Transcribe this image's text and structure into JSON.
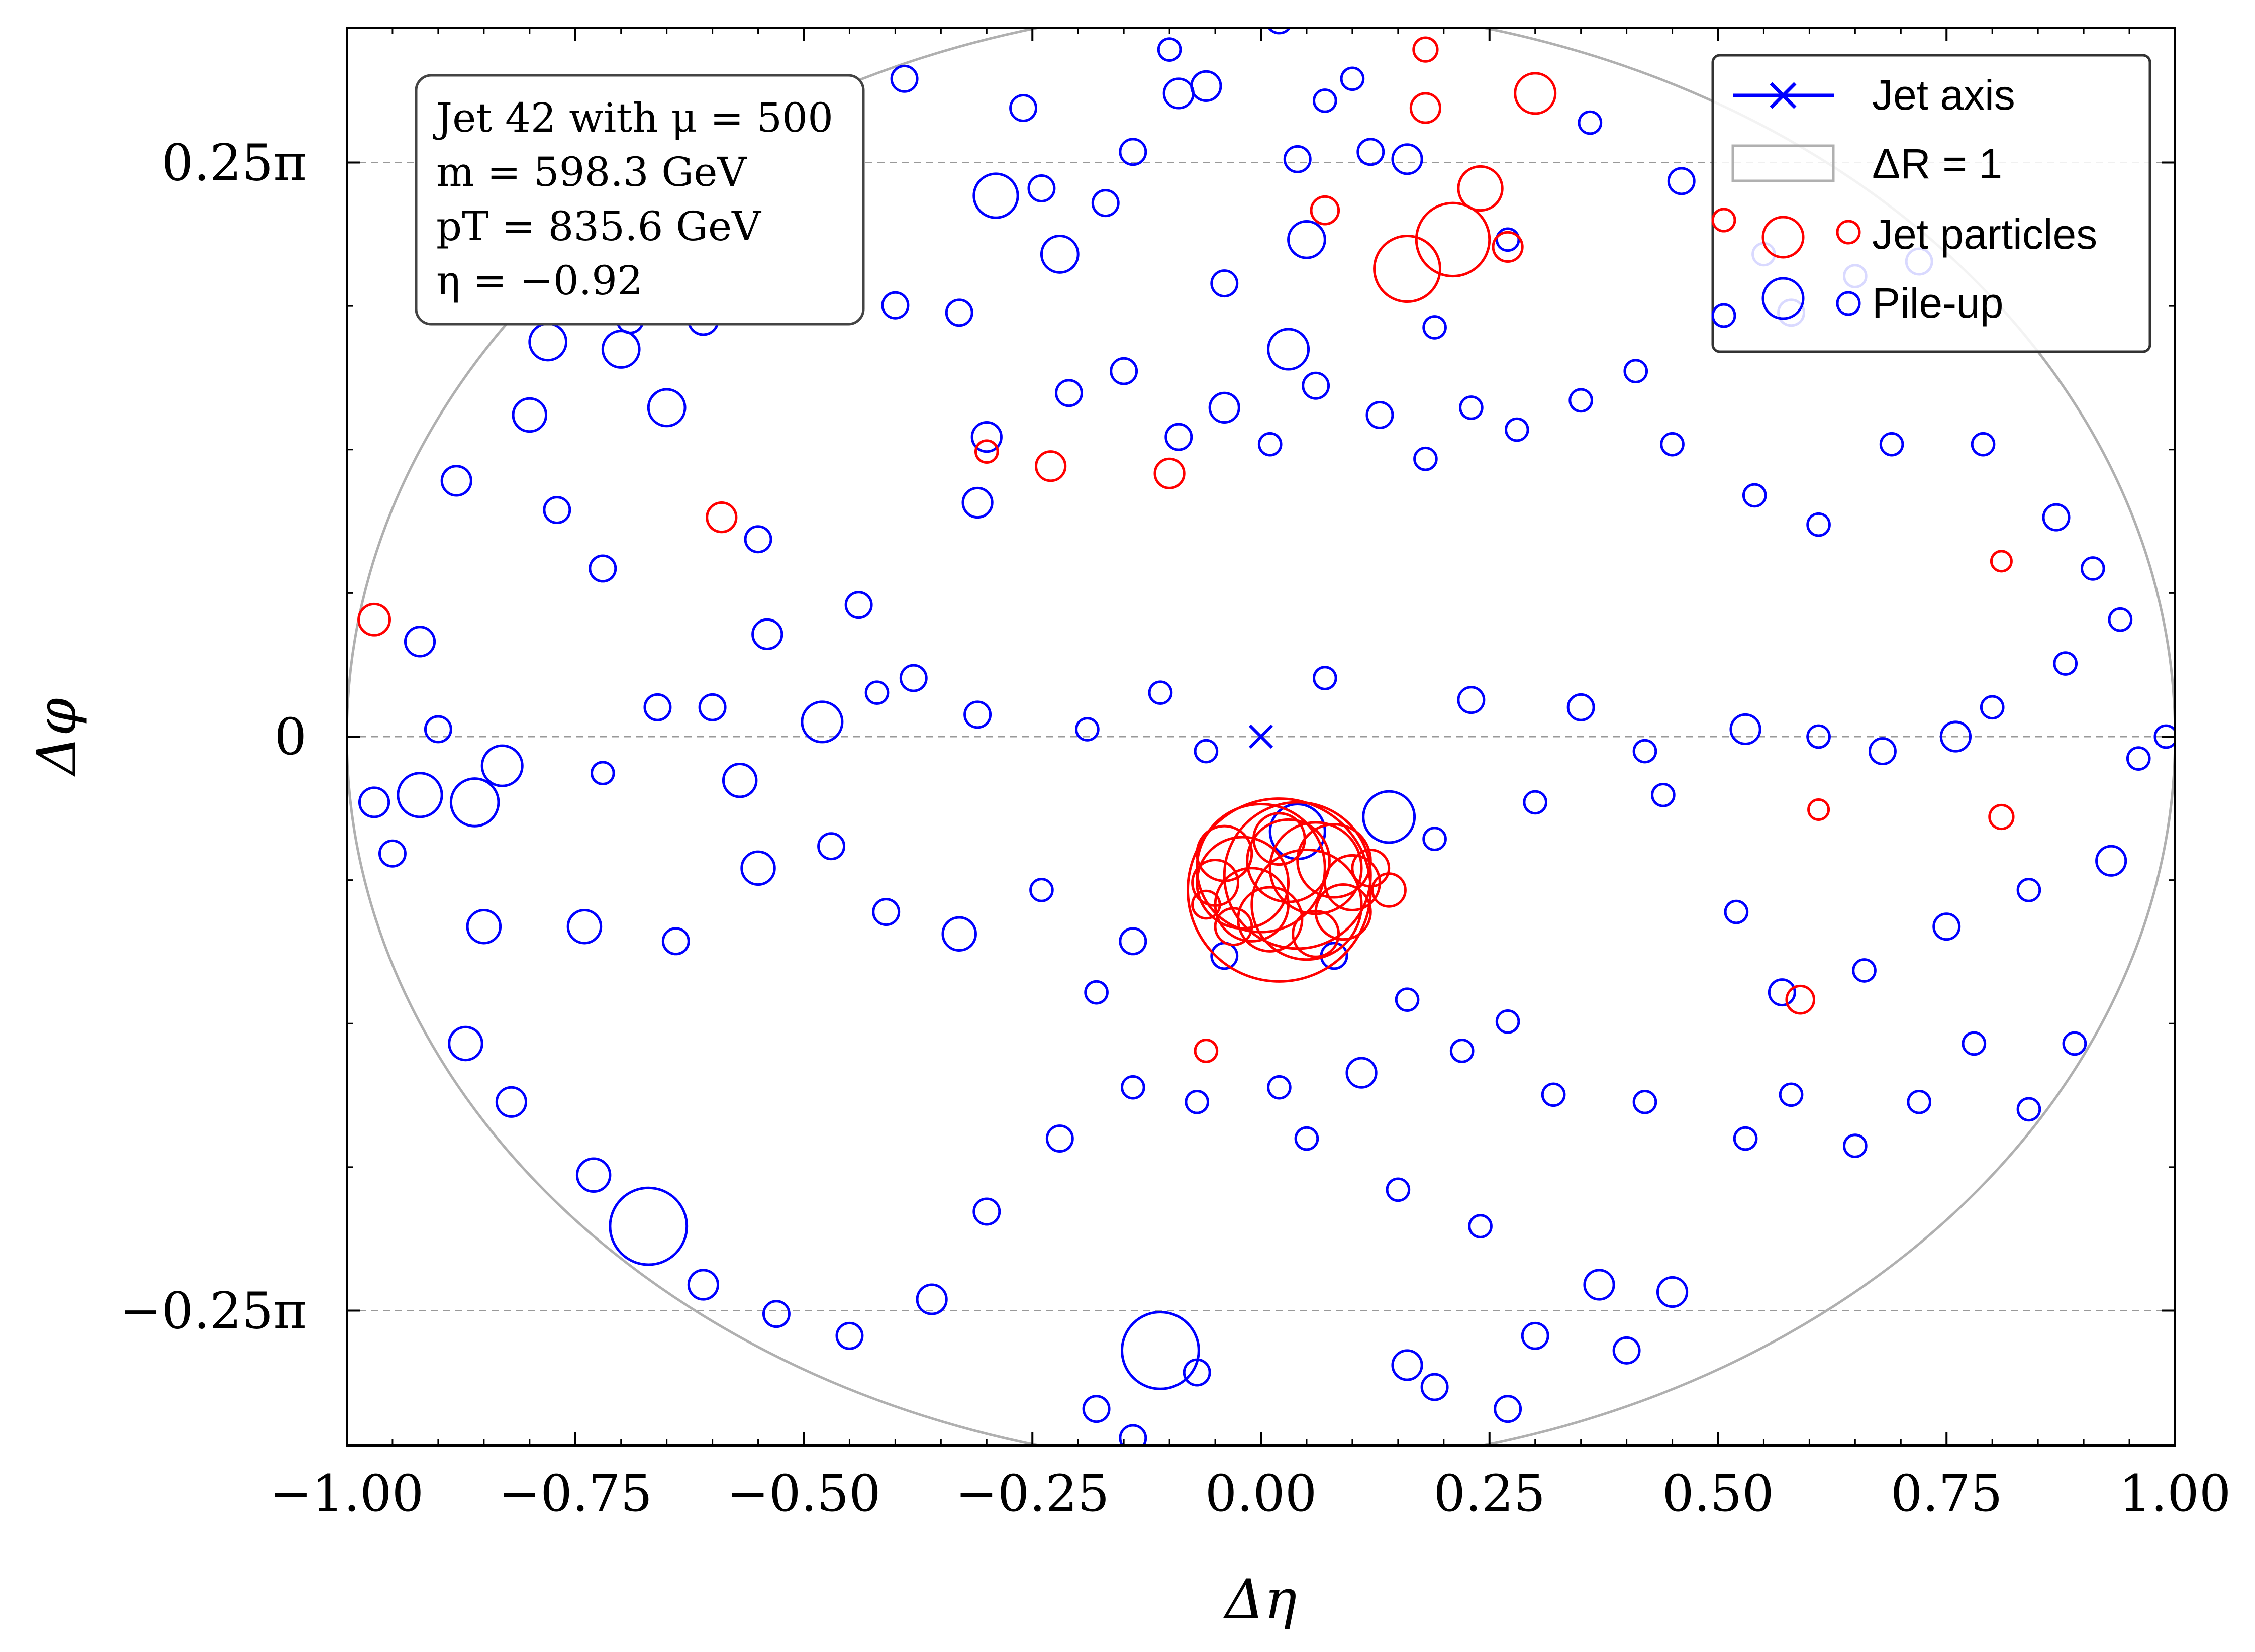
{
  "chart_data": {
    "type": "scatter",
    "xlabel": "Δη",
    "ylabel": "Δφ",
    "xlim": [
      -1.0,
      1.0
    ],
    "ylim": [
      -0.97,
      0.97
    ],
    "x_ticks": [
      -1.0,
      -0.75,
      -0.5,
      -0.25,
      0.0,
      0.25,
      0.5,
      0.75,
      1.0
    ],
    "x_tick_labels": [
      "−1.00",
      "−0.75",
      "−0.50",
      "−0.25",
      "0.00",
      "0.25",
      "0.50",
      "0.75",
      "1.00"
    ],
    "y_ticks": [
      0.7854,
      0.0,
      -0.7854
    ],
    "y_tick_labels": [
      "0.25π",
      "0",
      "−0.25π"
    ],
    "reference_lines_y": [
      0.7854,
      0.0,
      -0.7854
    ],
    "info_box": {
      "line1": "Jet 42 with μ = 500",
      "line2": "m = 598.3 GeV",
      "line3": "pT = 835.6 GeV",
      "line4": "η = −0.92"
    },
    "legend": {
      "placement": "top-right",
      "entries": [
        "Jet axis",
        "ΔR = 1",
        "Jet particles",
        "Pile-up"
      ]
    },
    "colors": {
      "jet_axis": "#0000ff",
      "jet_particles": "#ff0000",
      "pile_up": "#0000ff",
      "delta_r_circle": "#b0b0b0",
      "reference_lines": "#999999"
    },
    "series": [
      {
        "name": "Jet axis",
        "marker": "x",
        "x": [
          0.0
        ],
        "y": [
          0.0
        ]
      },
      {
        "name": "ΔR = 1",
        "shape": "circle",
        "center": [
          0.0,
          0.0
        ],
        "radius": 1.0
      },
      {
        "name": "Jet particles",
        "marker": "circle",
        "points": [
          [
            0.02,
            -0.21,
            0.1
          ],
          [
            0.04,
            -0.19,
            0.08
          ],
          [
            0.0,
            -0.18,
            0.07
          ],
          [
            0.05,
            -0.23,
            0.06
          ],
          [
            -0.02,
            -0.2,
            0.05
          ],
          [
            0.06,
            -0.18,
            0.05
          ],
          [
            0.03,
            -0.17,
            0.045
          ],
          [
            -0.01,
            -0.23,
            0.04
          ],
          [
            0.08,
            -0.17,
            0.04
          ],
          [
            0.01,
            -0.25,
            0.035
          ],
          [
            0.1,
            -0.2,
            0.03
          ],
          [
            -0.04,
            -0.16,
            0.03
          ],
          [
            0.09,
            -0.24,
            0.03
          ],
          [
            0.02,
            -0.14,
            0.028
          ],
          [
            -0.05,
            -0.2,
            0.025
          ],
          [
            0.06,
            -0.27,
            0.025
          ],
          [
            0.12,
            -0.18,
            0.02
          ],
          [
            -0.03,
            -0.26,
            0.02
          ],
          [
            0.14,
            -0.21,
            0.018
          ],
          [
            -0.06,
            -0.23,
            0.015
          ],
          [
            0.21,
            0.68,
            0.04
          ],
          [
            0.16,
            0.64,
            0.036
          ],
          [
            0.24,
            0.75,
            0.024
          ],
          [
            0.3,
            0.88,
            0.022
          ],
          [
            0.27,
            0.67,
            0.016
          ],
          [
            0.18,
            0.86,
            0.016
          ],
          [
            0.18,
            0.94,
            0.013
          ],
          [
            0.07,
            0.72,
            0.015
          ],
          [
            -0.97,
            0.16,
            0.017
          ],
          [
            -0.59,
            0.3,
            0.016
          ],
          [
            -0.23,
            0.37,
            0.016
          ],
          [
            -0.1,
            0.36,
            0.016
          ],
          [
            -0.3,
            0.39,
            0.012
          ],
          [
            0.81,
            0.24,
            0.011
          ],
          [
            0.61,
            -0.1,
            0.011
          ],
          [
            0.81,
            -0.11,
            0.013
          ],
          [
            0.59,
            -0.36,
            0.015
          ],
          [
            -0.06,
            -0.43,
            0.012
          ]
        ]
      },
      {
        "name": "Pile-up",
        "marker": "circle",
        "points": [
          [
            -0.67,
            -0.67,
            0.042
          ],
          [
            -0.11,
            -0.84,
            0.042
          ],
          [
            0.04,
            -0.13,
            0.03
          ],
          [
            0.14,
            -0.11,
            0.028
          ],
          [
            -0.48,
            0.78,
            0.024
          ],
          [
            -0.53,
            0.73,
            0.02
          ],
          [
            0.03,
            0.53,
            0.022
          ],
          [
            -0.29,
            0.74,
            0.024
          ],
          [
            -0.22,
            0.66,
            0.02
          ],
          [
            0.05,
            0.68,
            0.02
          ],
          [
            -0.3,
            0.41,
            0.016
          ],
          [
            -0.92,
            -0.08,
            0.024
          ],
          [
            -0.86,
            -0.09,
            0.026
          ],
          [
            -0.83,
            -0.04,
            0.022
          ],
          [
            -0.78,
            0.54,
            0.02
          ],
          [
            -0.7,
            0.53,
            0.02
          ],
          [
            -0.65,
            0.45,
            0.02
          ],
          [
            -0.61,
            0.57,
            0.016
          ],
          [
            -0.88,
            0.35,
            0.016
          ],
          [
            -0.77,
            0.31,
            0.014
          ],
          [
            -0.72,
            0.23,
            0.014
          ],
          [
            -0.55,
            0.27,
            0.014
          ],
          [
            -0.54,
            0.14,
            0.016
          ],
          [
            -0.48,
            0.02,
            0.022
          ],
          [
            -0.44,
            0.18,
            0.014
          ],
          [
            -0.38,
            0.08,
            0.014
          ],
          [
            -0.31,
            0.32,
            0.016
          ],
          [
            -0.21,
            0.47,
            0.014
          ],
          [
            -0.15,
            0.5,
            0.014
          ],
          [
            -0.09,
            0.41,
            0.014
          ],
          [
            -0.04,
            0.45,
            0.016
          ],
          [
            0.01,
            0.4,
            0.012
          ],
          [
            0.06,
            0.48,
            0.014
          ],
          [
            0.13,
            0.44,
            0.014
          ],
          [
            0.18,
            0.38,
            0.012
          ],
          [
            0.23,
            0.45,
            0.012
          ],
          [
            0.28,
            0.42,
            0.012
          ],
          [
            0.35,
            0.46,
            0.012
          ],
          [
            0.41,
            0.5,
            0.012
          ],
          [
            0.45,
            0.4,
            0.012
          ],
          [
            0.54,
            0.33,
            0.012
          ],
          [
            0.61,
            0.29,
            0.012
          ],
          [
            0.69,
            0.4,
            0.012
          ],
          [
            0.79,
            0.4,
            0.012
          ],
          [
            0.87,
            0.3,
            0.014
          ],
          [
            0.91,
            0.23,
            0.012
          ],
          [
            0.94,
            0.16,
            0.012
          ],
          [
            0.88,
            0.1,
            0.012
          ],
          [
            0.8,
            0.04,
            0.012
          ],
          [
            0.76,
            0.0,
            0.016
          ],
          [
            0.68,
            -0.02,
            0.014
          ],
          [
            0.61,
            0.0,
            0.012
          ],
          [
            0.53,
            0.01,
            0.016
          ],
          [
            0.42,
            -0.02,
            0.012
          ],
          [
            0.35,
            0.04,
            0.014
          ],
          [
            0.23,
            0.05,
            0.014
          ],
          [
            0.07,
            0.08,
            0.012
          ],
          [
            -0.06,
            -0.02,
            0.012
          ],
          [
            -0.11,
            0.06,
            0.012
          ],
          [
            -0.19,
            0.01,
            0.012
          ],
          [
            -0.31,
            0.03,
            0.014
          ],
          [
            -0.42,
            0.06,
            0.012
          ],
          [
            -0.57,
            -0.06,
            0.018
          ],
          [
            -0.6,
            0.04,
            0.014
          ],
          [
            -0.66,
            0.04,
            0.014
          ],
          [
            -0.72,
            -0.05,
            0.012
          ],
          [
            -0.9,
            0.01,
            0.014
          ],
          [
            -0.97,
            -0.09,
            0.016
          ],
          [
            -0.85,
            -0.26,
            0.018
          ],
          [
            -0.74,
            -0.26,
            0.018
          ],
          [
            -0.64,
            -0.28,
            0.014
          ],
          [
            -0.55,
            -0.18,
            0.018
          ],
          [
            -0.47,
            -0.15,
            0.014
          ],
          [
            -0.41,
            -0.24,
            0.014
          ],
          [
            -0.33,
            -0.27,
            0.018
          ],
          [
            -0.24,
            -0.21,
            0.012
          ],
          [
            -0.18,
            -0.35,
            0.012
          ],
          [
            -0.14,
            -0.48,
            0.012
          ],
          [
            -0.07,
            -0.5,
            0.012
          ],
          [
            0.02,
            -0.48,
            0.012
          ],
          [
            0.11,
            -0.46,
            0.016
          ],
          [
            0.16,
            -0.36,
            0.012
          ],
          [
            0.22,
            -0.43,
            0.012
          ],
          [
            0.27,
            -0.39,
            0.012
          ],
          [
            0.32,
            -0.49,
            0.012
          ],
          [
            0.42,
            -0.5,
            0.012
          ],
          [
            0.53,
            -0.55,
            0.012
          ],
          [
            0.58,
            -0.49,
            0.012
          ],
          [
            0.65,
            -0.56,
            0.012
          ],
          [
            0.72,
            -0.5,
            0.012
          ],
          [
            0.78,
            -0.42,
            0.012
          ],
          [
            0.84,
            -0.51,
            0.012
          ],
          [
            0.89,
            -0.42,
            0.012
          ],
          [
            0.93,
            -0.17,
            0.016
          ],
          [
            0.96,
            -0.03,
            0.012
          ],
          [
            0.99,
            0.0,
            0.012
          ],
          [
            0.84,
            -0.21,
            0.012
          ],
          [
            0.75,
            -0.26,
            0.014
          ],
          [
            0.66,
            -0.32,
            0.012
          ],
          [
            0.57,
            -0.35,
            0.014
          ],
          [
            0.52,
            -0.24,
            0.012
          ],
          [
            0.44,
            -0.08,
            0.012
          ],
          [
            0.3,
            -0.09,
            0.012
          ],
          [
            0.19,
            -0.14,
            0.012
          ],
          [
            0.08,
            -0.3,
            0.014
          ],
          [
            -0.04,
            -0.3,
            0.014
          ],
          [
            -0.14,
            -0.28,
            0.014
          ],
          [
            -0.22,
            -0.55,
            0.014
          ],
          [
            -0.3,
            -0.65,
            0.014
          ],
          [
            -0.36,
            -0.77,
            0.016
          ],
          [
            -0.45,
            -0.82,
            0.014
          ],
          [
            -0.53,
            -0.79,
            0.014
          ],
          [
            -0.61,
            -0.75,
            0.016
          ],
          [
            -0.73,
            -0.6,
            0.018
          ],
          [
            -0.82,
            -0.5,
            0.016
          ],
          [
            -0.87,
            -0.42,
            0.018
          ],
          [
            -0.95,
            -0.16,
            0.014
          ],
          [
            -0.92,
            0.13,
            0.016
          ],
          [
            -0.8,
            0.44,
            0.018
          ],
          [
            -0.69,
            0.57,
            0.014
          ],
          [
            -0.58,
            0.65,
            0.016
          ],
          [
            -0.5,
            0.59,
            0.014
          ],
          [
            -0.4,
            0.59,
            0.014
          ],
          [
            -0.33,
            0.58,
            0.014
          ],
          [
            -0.24,
            0.75,
            0.014
          ],
          [
            -0.17,
            0.73,
            0.014
          ],
          [
            -0.09,
            0.88,
            0.016
          ],
          [
            -0.04,
            0.62,
            0.014
          ],
          [
            0.04,
            0.79,
            0.014
          ],
          [
            0.07,
            0.87,
            0.012
          ],
          [
            0.12,
            0.8,
            0.014
          ],
          [
            0.16,
            0.79,
            0.016
          ],
          [
            0.19,
            0.56,
            0.012
          ],
          [
            0.27,
            0.68,
            0.012
          ],
          [
            0.36,
            0.84,
            0.012
          ],
          [
            0.46,
            0.76,
            0.014
          ],
          [
            0.55,
            0.66,
            0.012
          ],
          [
            0.58,
            0.58,
            0.014
          ],
          [
            0.65,
            0.63,
            0.012
          ],
          [
            0.72,
            0.65,
            0.014
          ],
          [
            -0.1,
            0.94,
            0.012
          ],
          [
            -0.06,
            0.89,
            0.016
          ],
          [
            0.02,
            0.98,
            0.014
          ],
          [
            0.1,
            0.9,
            0.012
          ],
          [
            -0.39,
            0.9,
            0.014
          ],
          [
            -0.26,
            0.86,
            0.014
          ],
          [
            -0.14,
            0.8,
            0.014
          ],
          [
            -0.18,
            -0.92,
            0.014
          ],
          [
            -0.14,
            -0.96,
            0.014
          ],
          [
            -0.07,
            -0.87,
            0.014
          ],
          [
            0.16,
            -0.86,
            0.016
          ],
          [
            0.19,
            -0.89,
            0.014
          ],
          [
            0.27,
            -0.92,
            0.014
          ],
          [
            0.37,
            -0.75,
            0.016
          ],
          [
            0.45,
            -0.76,
            0.016
          ],
          [
            0.4,
            -0.84,
            0.014
          ],
          [
            0.3,
            -0.82,
            0.014
          ],
          [
            0.24,
            -0.67,
            0.012
          ],
          [
            0.15,
            -0.62,
            0.012
          ],
          [
            0.05,
            -0.55,
            0.012
          ]
        ]
      }
    ]
  }
}
